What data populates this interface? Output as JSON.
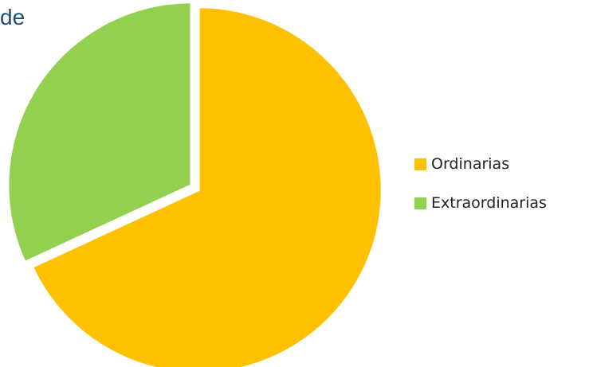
{
  "header": {
    "title_fragment": "de"
  },
  "chart_data": {
    "type": "pie",
    "title": "",
    "slices": [
      {
        "label": "Ordinarias",
        "value": 68.1,
        "color": "#FFC000"
      },
      {
        "label": "Extraordinarias",
        "value": 31.9,
        "color": "#92D050"
      }
    ],
    "legend_position": "right",
    "start_angle": "12 o'clock",
    "direction": "clockwise"
  }
}
